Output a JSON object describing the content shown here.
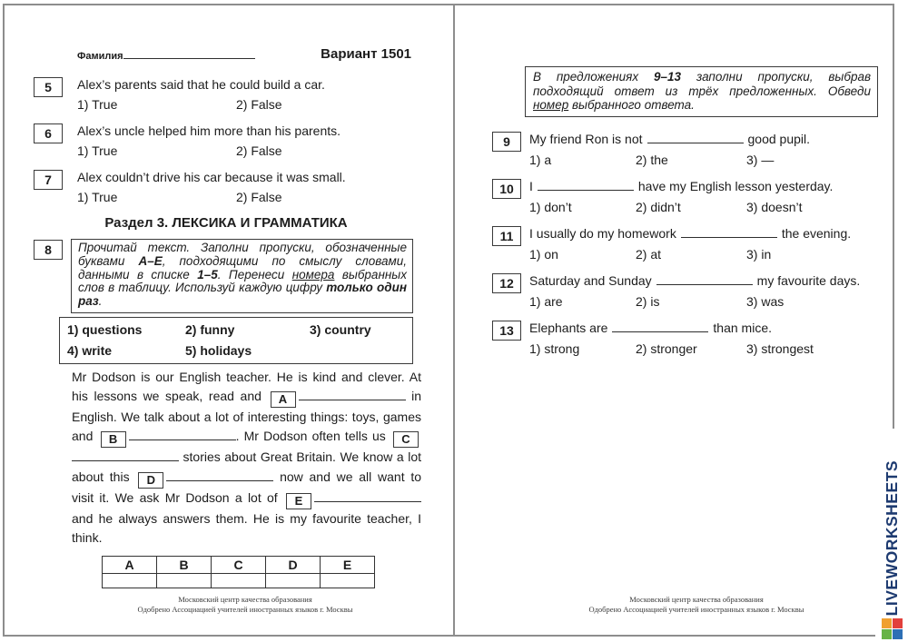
{
  "header": {
    "surname_label": "Фамилия",
    "variant": "Вариант 1501"
  },
  "left_page": {
    "tf_questions": [
      {
        "num": "5",
        "statement": "Alex’s parents said that he could build a car.",
        "options": [
          "1) True",
          "2) False"
        ]
      },
      {
        "num": "6",
        "statement": "Alex’s uncle helped him more than his parents.",
        "options": [
          "1) True",
          "2) False"
        ]
      },
      {
        "num": "7",
        "statement": "Alex couldn’t drive his car because it was small.",
        "options": [
          "1) True",
          "2) False"
        ]
      }
    ],
    "section_heading": "Раздел 3. ЛЕКСИКА И ГРАММАТИКА",
    "task8": {
      "num": "8",
      "instruction_runs": [
        {
          "t": "Прочитай текст. Заполни пропуски, обозначенные буквами "
        },
        {
          "t": "А–Е",
          "s": "b"
        },
        {
          "t": ", подходящими по смыслу словами, данными в списке "
        },
        {
          "t": "1–5",
          "s": "b"
        },
        {
          "t": ". Перенеси "
        },
        {
          "t": "номера",
          "s": "u"
        },
        {
          "t": " выбранных слов в таблицу. Используй каждую цифру "
        },
        {
          "t": "только один раз",
          "s": "b"
        },
        {
          "t": "."
        }
      ],
      "word_bank": [
        "1)  questions",
        "2)  funny",
        "3)  country",
        "4)  write",
        "5)  holidays"
      ],
      "paragraph_runs": [
        {
          "t": "Mr Dodson is our English teacher. He is kind and clever. At his lessons we speak, read and "
        },
        {
          "box": "A"
        },
        {
          "blank": true
        },
        {
          "t": " in English. We talk about a lot of interesting things: toys, games and "
        },
        {
          "box": "B"
        },
        {
          "blank": true
        },
        {
          "t": ". Mr Dodson often tells us "
        },
        {
          "box": "C"
        },
        {
          "blank": true
        },
        {
          "t": " stories about Great Britain. We know a lot about this "
        },
        {
          "box": "D"
        },
        {
          "blank": true
        },
        {
          "t": " now and we all want to visit it. We ask Mr Dodson a lot of "
        },
        {
          "box": "E"
        },
        {
          "blank": true
        },
        {
          "t": " and he always answers them. He is my favourite teacher, I think."
        }
      ],
      "answer_table_headers": [
        "A",
        "B",
        "C",
        "D",
        "E"
      ]
    }
  },
  "right_page": {
    "instruction_runs": [
      {
        "t": "В предложениях "
      },
      {
        "t": "9–13",
        "s": "b"
      },
      {
        "t": " заполни пропуски, выбрав подходящий ответ из трёх предложенных. Обведи "
      },
      {
        "t": "номер",
        "s": "u"
      },
      {
        "t": " выбранного ответа."
      }
    ],
    "mc_questions": [
      {
        "num": "9",
        "before": "My friend Ron is not",
        "after": "good pupil.",
        "options": [
          "1) a",
          "2) the",
          "3) —"
        ]
      },
      {
        "num": "10",
        "before": "I",
        "after": "have my English lesson yesterday.",
        "options": [
          "1) don’t",
          "2) didn’t",
          "3) doesn’t"
        ]
      },
      {
        "num": "11",
        "before": "I usually do my homework",
        "after": "the evening.",
        "options": [
          "1) on",
          "2) at",
          "3) in"
        ]
      },
      {
        "num": "12",
        "before": "Saturday and Sunday",
        "after": "my favourite days.",
        "options": [
          "1) are",
          "2) is",
          "3) was"
        ]
      },
      {
        "num": "13",
        "before": "Elephants are",
        "after": "than mice.",
        "options": [
          "1) strong",
          "2) stronger",
          "3) strongest"
        ]
      }
    ]
  },
  "footer_lines": [
    "Московский центр качества образования",
    "Одобрено Ассоциацией учителей иностранных языков г. Москвы"
  ],
  "watermark": {
    "text": "LIVEWORKSHEETS",
    "color": "#1d3a70",
    "logo_colors": [
      "#f0a030",
      "#e2403c",
      "#67b346",
      "#2d6fb5"
    ]
  }
}
